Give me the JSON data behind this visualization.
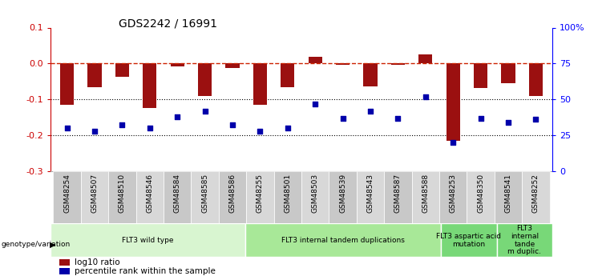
{
  "title": "GDS2242 / 16991",
  "samples": [
    "GSM48254",
    "GSM48507",
    "GSM48510",
    "GSM48546",
    "GSM48584",
    "GSM48585",
    "GSM48586",
    "GSM48255",
    "GSM48501",
    "GSM48503",
    "GSM48539",
    "GSM48543",
    "GSM48587",
    "GSM48588",
    "GSM48253",
    "GSM48350",
    "GSM48541",
    "GSM48252"
  ],
  "log10_ratio": [
    -0.115,
    -0.065,
    -0.038,
    -0.125,
    -0.008,
    -0.09,
    -0.012,
    -0.115,
    -0.065,
    0.018,
    -0.004,
    -0.063,
    -0.004,
    0.026,
    -0.215,
    -0.068,
    -0.055,
    -0.09
  ],
  "pct_rank": [
    30,
    28,
    32,
    30,
    38,
    42,
    32,
    28,
    30,
    47,
    37,
    42,
    37,
    52,
    20,
    37,
    34,
    36
  ],
  "groups": [
    {
      "label": "FLT3 wild type",
      "start": 0,
      "end": 7,
      "color": "#d8f5d0"
    },
    {
      "label": "FLT3 internal tandem duplications",
      "start": 7,
      "end": 14,
      "color": "#a8e898"
    },
    {
      "label": "FLT3 aspartic acid\nmutation",
      "start": 14,
      "end": 16,
      "color": "#78d878"
    },
    {
      "label": "FLT3\ninternal\ntande\nm duplic.",
      "start": 16,
      "end": 18,
      "color": "#78d878"
    }
  ],
  "bar_color": "#9b1010",
  "dot_color": "#0000aa",
  "hline_color": "#cc2200",
  "ylim_left": [
    -0.3,
    0.1
  ],
  "ylim_right": [
    0,
    100
  ],
  "left_ticks": [
    -0.3,
    -0.2,
    -0.1,
    0.0,
    0.1
  ],
  "right_ticks": [
    0,
    25,
    50,
    75,
    100
  ],
  "right_tick_labels": [
    "0",
    "25",
    "50",
    "75",
    "100%"
  ],
  "group_separators": [
    7,
    14,
    16
  ]
}
